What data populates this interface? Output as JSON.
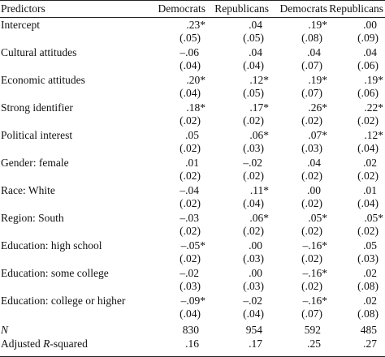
{
  "header": {
    "predictors": "Predictors",
    "columns": [
      "Democrats",
      "Republicans",
      "Democrats",
      "Republicans"
    ]
  },
  "rows": [
    {
      "label": "Intercept",
      "coef": [
        ".23*",
        ".04",
        ".19*",
        ".00"
      ],
      "se": [
        "(.05)",
        "(.05)",
        "(.08)",
        "(.09)"
      ]
    },
    {
      "label": "Cultural attitudes",
      "coef": [
        "–.06",
        ".04",
        ".04",
        ".04"
      ],
      "se": [
        "(.04)",
        "(.04)",
        "(.07)",
        "(.06)"
      ]
    },
    {
      "label": "Economic attitudes",
      "coef": [
        ".20*",
        ".12*",
        ".19*",
        ".19*"
      ],
      "se": [
        "(.04)",
        "(.05)",
        "(.07)",
        "(.06)"
      ]
    },
    {
      "label": "Strong identifier",
      "coef": [
        ".18*",
        ".17*",
        ".26*",
        ".22*"
      ],
      "se": [
        "(.02)",
        "(.02)",
        "(.02)",
        "(.02)"
      ]
    },
    {
      "label": "Political interest",
      "coef": [
        ".05",
        ".06*",
        ".07*",
        ".12*"
      ],
      "se": [
        "(.02)",
        "(.03)",
        "(.03)",
        "(.04)"
      ]
    },
    {
      "label": "Gender: female",
      "coef": [
        ".01",
        "–.02",
        ".04",
        ".02"
      ],
      "se": [
        "(.02)",
        "(.02)",
        "(.02)",
        "(.02)"
      ]
    },
    {
      "label": "Race: White",
      "coef": [
        "–.04",
        ".11*",
        ".00",
        ".01"
      ],
      "se": [
        "(.02)",
        "(.04)",
        "(.02)",
        "(.04)"
      ]
    },
    {
      "label": "Region: South",
      "coef": [
        "–.03",
        ".06*",
        ".05*",
        ".05*"
      ],
      "se": [
        "(.02)",
        "(.02)",
        "(.02)",
        "(.02)"
      ]
    },
    {
      "label": "Education: high school",
      "coef": [
        "–.05*",
        ".00",
        "–.16*",
        ".05"
      ],
      "se": [
        "(.02)",
        "(.03)",
        "(.02)",
        "(.03)"
      ]
    },
    {
      "label": "Education: some college",
      "coef": [
        "–.02",
        ".00",
        "–.16*",
        ".02"
      ],
      "se": [
        "(.03)",
        "(.03)",
        "(.02)",
        "(.08)"
      ]
    },
    {
      "label": "Education: college or higher",
      "coef": [
        "–.09*",
        "–.02",
        "–.16*",
        ".02"
      ],
      "se": [
        "(.04)",
        "(.04)",
        "(.07)",
        "(.08)"
      ]
    }
  ],
  "stats": {
    "n": {
      "label": "N",
      "values": [
        "830",
        "954",
        "592",
        "485"
      ]
    },
    "r2": {
      "label_prefix": "Adjusted ",
      "label_italic": "R",
      "label_suffix": "-squared",
      "values": [
        ".16",
        ".17",
        ".25",
        ".27"
      ]
    }
  }
}
